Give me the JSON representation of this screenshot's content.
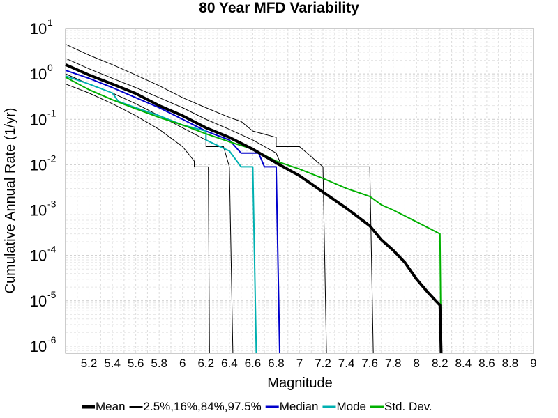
{
  "chart_data": {
    "type": "line",
    "title": "80 Year MFD Variability",
    "xlabel": "Magnitude",
    "ylabel": "Cumulative Annual Rate (1/yr)",
    "xlim": [
      5.0,
      9.0
    ],
    "ylim": [
      7e-07,
      10
    ],
    "yscale": "log",
    "grid": true,
    "legend_position": "bottom",
    "x_ticks": [
      "5.2",
      "5.4",
      "5.6",
      "5.8",
      "6",
      "6.2",
      "6.4",
      "6.6",
      "6.8",
      "7",
      "7.2",
      "7.4",
      "7.6",
      "7.8",
      "8",
      "8.2",
      "8.4",
      "8.6",
      "8.8",
      "9"
    ],
    "y_ticks": [
      {
        "value": 1e-06,
        "base": "10",
        "exp": "-6"
      },
      {
        "value": 1e-05,
        "base": "10",
        "exp": "-5"
      },
      {
        "value": 0.0001,
        "base": "10",
        "exp": "-4"
      },
      {
        "value": 0.001,
        "base": "10",
        "exp": "-3"
      },
      {
        "value": 0.01,
        "base": "10",
        "exp": "-2"
      },
      {
        "value": 0.1,
        "base": "10",
        "exp": "-1"
      },
      {
        "value": 1,
        "base": "10",
        "exp": "0"
      },
      {
        "value": 10,
        "base": "10",
        "exp": "1"
      }
    ],
    "legend": [
      {
        "label": "Mean",
        "color": "#000000",
        "width": 4
      },
      {
        "label": "2.5%,16%,84%,97.5%",
        "color": "#000000",
        "width": 1
      },
      {
        "label": "Median",
        "color": "#0000cc",
        "width": 2
      },
      {
        "label": "Mode",
        "color": "#00b0b0",
        "width": 2
      },
      {
        "label": "Std. Dev.",
        "color": "#00b000",
        "width": 2
      }
    ],
    "series": [
      {
        "legend_index": 0,
        "color": "#000000",
        "width": 4,
        "points": [
          [
            5.0,
            1.6
          ],
          [
            5.2,
            0.95
          ],
          [
            5.4,
            0.6
          ],
          [
            5.6,
            0.37
          ],
          [
            5.8,
            0.2
          ],
          [
            6.0,
            0.12
          ],
          [
            6.2,
            0.065
          ],
          [
            6.4,
            0.04
          ],
          [
            6.6,
            0.022
          ],
          [
            6.8,
            0.011
          ],
          [
            7.0,
            0.0057
          ],
          [
            7.2,
            0.0025
          ],
          [
            7.4,
            0.0011
          ],
          [
            7.6,
            0.00045
          ],
          [
            7.7,
            0.00022
          ],
          [
            7.8,
            0.00013
          ],
          [
            7.9,
            7e-05
          ],
          [
            8.0,
            3e-05
          ],
          [
            8.1,
            1.5e-05
          ],
          [
            8.2,
            8e-06
          ],
          [
            8.21,
            7e-07
          ]
        ]
      },
      {
        "legend_index": 1,
        "color": "#000000",
        "width": 1,
        "points": [
          [
            5.0,
            0.6
          ],
          [
            5.2,
            0.38
          ],
          [
            5.4,
            0.22
          ],
          [
            5.6,
            0.12
          ],
          [
            5.8,
            0.06
          ],
          [
            6.0,
            0.025
          ],
          [
            6.1,
            0.012
          ],
          [
            6.1,
            0.009
          ],
          [
            6.22,
            0.009
          ],
          [
            6.23,
            7e-07
          ]
        ]
      },
      {
        "legend_index": 1,
        "color": "#000000",
        "width": 1,
        "points": [
          [
            5.0,
            1.0
          ],
          [
            5.2,
            0.6
          ],
          [
            5.4,
            0.38
          ],
          [
            5.6,
            0.22
          ],
          [
            5.8,
            0.12
          ],
          [
            6.0,
            0.065
          ],
          [
            6.2,
            0.035
          ],
          [
            6.2,
            0.025
          ],
          [
            6.35,
            0.025
          ],
          [
            6.4,
            0.009
          ],
          [
            6.43,
            7e-07
          ]
        ]
      },
      {
        "legend_index": 1,
        "color": "#000000",
        "width": 1,
        "points": [
          [
            5.0,
            2.2
          ],
          [
            5.2,
            1.3
          ],
          [
            5.4,
            0.8
          ],
          [
            5.6,
            0.5
          ],
          [
            5.8,
            0.3
          ],
          [
            6.0,
            0.18
          ],
          [
            6.2,
            0.1
          ],
          [
            6.4,
            0.06
          ],
          [
            6.6,
            0.035
          ],
          [
            6.8,
            0.018
          ],
          [
            6.85,
            0.009
          ],
          [
            7.2,
            0.009
          ],
          [
            7.23,
            7e-07
          ]
        ]
      },
      {
        "legend_index": 1,
        "color": "#000000",
        "width": 1,
        "points": [
          [
            5.0,
            4.5
          ],
          [
            5.2,
            2.6
          ],
          [
            5.4,
            1.6
          ],
          [
            5.6,
            0.95
          ],
          [
            5.8,
            0.55
          ],
          [
            6.0,
            0.3
          ],
          [
            6.2,
            0.18
          ],
          [
            6.4,
            0.11
          ],
          [
            6.5,
            0.09
          ],
          [
            6.6,
            0.055
          ],
          [
            6.8,
            0.04
          ],
          [
            6.8,
            0.025
          ],
          [
            7.0,
            0.025
          ],
          [
            7.2,
            0.009
          ],
          [
            7.6,
            0.009
          ],
          [
            7.63,
            7e-07
          ]
        ]
      },
      {
        "legend_index": 2,
        "color": "#0000cc",
        "width": 2,
        "points": [
          [
            5.0,
            1.2
          ],
          [
            5.2,
            0.8
          ],
          [
            5.4,
            0.5
          ],
          [
            5.6,
            0.3
          ],
          [
            5.8,
            0.18
          ],
          [
            6.0,
            0.1
          ],
          [
            6.2,
            0.055
          ],
          [
            6.4,
            0.035
          ],
          [
            6.5,
            0.018
          ],
          [
            6.65,
            0.018
          ],
          [
            6.7,
            0.009
          ],
          [
            6.8,
            0.009
          ],
          [
            6.83,
            7e-07
          ]
        ]
      },
      {
        "legend_index": 3,
        "color": "#00b0b0",
        "width": 2,
        "points": [
          [
            5.0,
            0.9
          ],
          [
            5.2,
            0.6
          ],
          [
            5.4,
            0.38
          ],
          [
            5.45,
            0.25
          ],
          [
            5.6,
            0.18
          ],
          [
            5.8,
            0.12
          ],
          [
            6.0,
            0.075
          ],
          [
            6.2,
            0.055
          ],
          [
            6.2,
            0.035
          ],
          [
            6.4,
            0.02
          ],
          [
            6.5,
            0.009
          ],
          [
            6.6,
            0.009
          ],
          [
            6.63,
            7e-07
          ]
        ]
      },
      {
        "legend_index": 4,
        "color": "#00b000",
        "width": 2,
        "points": [
          [
            5.0,
            0.85
          ],
          [
            5.2,
            0.45
          ],
          [
            5.4,
            0.27
          ],
          [
            5.6,
            0.17
          ],
          [
            5.8,
            0.11
          ],
          [
            6.0,
            0.075
          ],
          [
            6.2,
            0.048
          ],
          [
            6.4,
            0.032
          ],
          [
            6.6,
            0.022
          ],
          [
            6.8,
            0.012
          ],
          [
            7.0,
            0.008
          ],
          [
            7.2,
            0.005
          ],
          [
            7.4,
            0.003
          ],
          [
            7.6,
            0.002
          ],
          [
            7.7,
            0.0013
          ],
          [
            7.8,
            0.001
          ],
          [
            8.0,
            0.00055
          ],
          [
            8.2,
            0.0003
          ],
          [
            8.21,
            7e-07
          ]
        ]
      }
    ]
  }
}
